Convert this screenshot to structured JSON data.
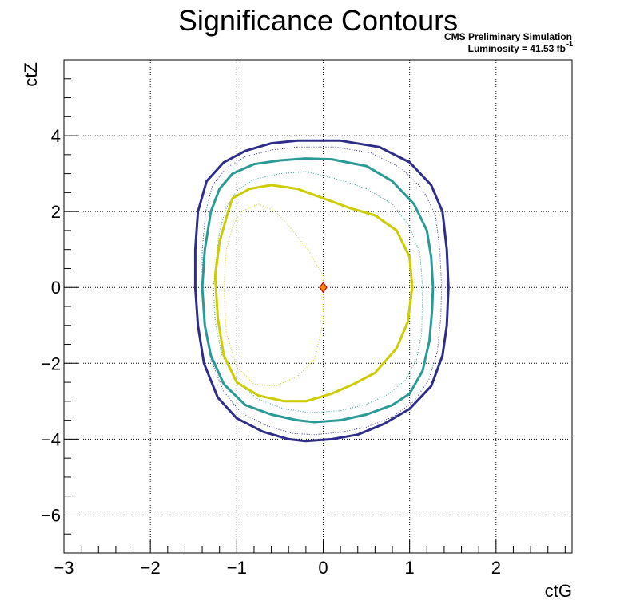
{
  "chart_data": {
    "type": "line",
    "title": "Significance Contours",
    "annotations": {
      "line1": "CMS Preliminary Simulation",
      "line2_prefix": "Luminosity = 41.53 fb",
      "line2_sup": "-1"
    },
    "xlabel": "ctG",
    "ylabel": "ctZ",
    "xlim": [
      -3,
      2.88
    ],
    "ylim": [
      -7,
      6
    ],
    "xticks": [
      -3,
      -2,
      -1,
      0,
      1,
      2
    ],
    "xtick_labels": [
      "−3",
      "−2",
      "−1",
      "0",
      "1",
      "2"
    ],
    "yticks": [
      -6,
      -4,
      -2,
      0,
      2,
      4
    ],
    "ytick_labels": [
      "−6",
      "−4",
      "−2",
      "0",
      "2",
      "4"
    ],
    "grid": true,
    "best_fit": {
      "x": 0.0,
      "y": 0.0,
      "color": "#ff8c00",
      "edge": "#c00000"
    },
    "series": [
      {
        "color": "#2e2e8a",
        "style": "solid",
        "width": 3,
        "points": [
          [
            -0.3,
            3.87
          ],
          [
            -0.6,
            3.8
          ],
          [
            -0.9,
            3.6
          ],
          [
            -1.15,
            3.3
          ],
          [
            -1.35,
            2.8
          ],
          [
            -1.45,
            2.0
          ],
          [
            -1.48,
            1.0
          ],
          [
            -1.48,
            0.0
          ],
          [
            -1.45,
            -1.0
          ],
          [
            -1.38,
            -2.0
          ],
          [
            -1.22,
            -2.9
          ],
          [
            -1.0,
            -3.45
          ],
          [
            -0.7,
            -3.8
          ],
          [
            -0.4,
            -4.0
          ],
          [
            -0.2,
            -4.05
          ],
          [
            0.1,
            -4.0
          ],
          [
            0.4,
            -3.88
          ],
          [
            0.7,
            -3.6
          ],
          [
            1.0,
            -3.2
          ],
          [
            1.25,
            -2.6
          ],
          [
            1.38,
            -1.8
          ],
          [
            1.43,
            -1.0
          ],
          [
            1.45,
            0.0
          ],
          [
            1.43,
            1.0
          ],
          [
            1.38,
            2.0
          ],
          [
            1.25,
            2.7
          ],
          [
            1.0,
            3.3
          ],
          [
            0.65,
            3.7
          ],
          [
            0.2,
            3.87
          ],
          [
            -0.3,
            3.87
          ]
        ]
      },
      {
        "color": "#2e2e8a",
        "style": "dotted",
        "width": 1,
        "points": [
          [
            -0.3,
            3.7
          ],
          [
            -0.6,
            3.62
          ],
          [
            -0.9,
            3.45
          ],
          [
            -1.12,
            3.15
          ],
          [
            -1.28,
            2.7
          ],
          [
            -1.36,
            2.0
          ],
          [
            -1.4,
            1.0
          ],
          [
            -1.4,
            0.0
          ],
          [
            -1.37,
            -1.0
          ],
          [
            -1.3,
            -1.9
          ],
          [
            -1.15,
            -2.75
          ],
          [
            -0.95,
            -3.3
          ],
          [
            -0.65,
            -3.65
          ],
          [
            -0.35,
            -3.85
          ],
          [
            -0.1,
            -3.88
          ],
          [
            0.2,
            -3.82
          ],
          [
            0.5,
            -3.68
          ],
          [
            0.8,
            -3.42
          ],
          [
            1.05,
            -3.0
          ],
          [
            1.22,
            -2.45
          ],
          [
            1.32,
            -1.7
          ],
          [
            1.36,
            -0.8
          ],
          [
            1.37,
            0.0
          ],
          [
            1.35,
            1.0
          ],
          [
            1.3,
            1.9
          ],
          [
            1.15,
            2.6
          ],
          [
            0.9,
            3.15
          ],
          [
            0.55,
            3.55
          ],
          [
            0.15,
            3.7
          ],
          [
            -0.3,
            3.7
          ]
        ]
      },
      {
        "color": "#2a9a96",
        "style": "solid",
        "width": 3,
        "points": [
          [
            -0.2,
            3.4
          ],
          [
            -0.5,
            3.35
          ],
          [
            -0.8,
            3.25
          ],
          [
            -1.05,
            3.0
          ],
          [
            -1.2,
            2.6
          ],
          [
            -1.3,
            2.0
          ],
          [
            -1.37,
            1.0
          ],
          [
            -1.4,
            0.0
          ],
          [
            -1.37,
            -1.0
          ],
          [
            -1.3,
            -1.8
          ],
          [
            -1.15,
            -2.55
          ],
          [
            -0.9,
            -3.1
          ],
          [
            -0.6,
            -3.35
          ],
          [
            -0.3,
            -3.5
          ],
          [
            -0.1,
            -3.55
          ],
          [
            0.2,
            -3.5
          ],
          [
            0.5,
            -3.35
          ],
          [
            0.8,
            -3.1
          ],
          [
            1.0,
            -2.8
          ],
          [
            1.15,
            -2.2
          ],
          [
            1.23,
            -1.4
          ],
          [
            1.26,
            -0.6
          ],
          [
            1.27,
            0.0
          ],
          [
            1.25,
            0.8
          ],
          [
            1.2,
            1.5
          ],
          [
            1.05,
            2.2
          ],
          [
            0.8,
            2.8
          ],
          [
            0.5,
            3.2
          ],
          [
            0.1,
            3.38
          ],
          [
            -0.2,
            3.4
          ]
        ]
      },
      {
        "color": "#2a9a96",
        "style": "dotted",
        "width": 1,
        "points": [
          [
            -0.2,
            3.05
          ],
          [
            -0.5,
            3.0
          ],
          [
            -0.8,
            2.85
          ],
          [
            -1.0,
            2.55
          ],
          [
            -1.12,
            2.1
          ],
          [
            -1.2,
            1.5
          ],
          [
            -1.25,
            0.5
          ],
          [
            -1.27,
            0.0
          ],
          [
            -1.25,
            -0.9
          ],
          [
            -1.17,
            -1.8
          ],
          [
            -1.0,
            -2.5
          ],
          [
            -0.75,
            -2.95
          ],
          [
            -0.45,
            -3.2
          ],
          [
            -0.15,
            -3.3
          ],
          [
            0.2,
            -3.25
          ],
          [
            0.5,
            -3.08
          ],
          [
            0.75,
            -2.82
          ],
          [
            0.95,
            -2.45
          ],
          [
            1.08,
            -1.9
          ],
          [
            1.14,
            -1.2
          ],
          [
            1.15,
            0.0
          ],
          [
            1.12,
            0.9
          ],
          [
            1.0,
            1.6
          ],
          [
            0.8,
            2.2
          ],
          [
            0.5,
            2.6
          ],
          [
            0.25,
            2.8
          ],
          [
            0.0,
            2.95
          ],
          [
            -0.2,
            3.05
          ]
        ]
      },
      {
        "color": "#cccc00",
        "style": "solid",
        "width": 3,
        "points": [
          [
            -0.6,
            2.7
          ],
          [
            -0.85,
            2.6
          ],
          [
            -1.05,
            2.35
          ],
          [
            -1.1,
            2.0
          ],
          [
            -1.2,
            1.2
          ],
          [
            -1.25,
            0.3
          ],
          [
            -1.22,
            -0.8
          ],
          [
            -1.15,
            -1.8
          ],
          [
            -1.0,
            -2.5
          ],
          [
            -0.75,
            -2.85
          ],
          [
            -0.45,
            -3.0
          ],
          [
            -0.2,
            -3.0
          ],
          [
            0.1,
            -2.8
          ],
          [
            0.35,
            -2.55
          ],
          [
            0.6,
            -2.25
          ],
          [
            0.85,
            -1.6
          ],
          [
            0.98,
            -0.9
          ],
          [
            1.03,
            0.0
          ],
          [
            1.0,
            0.8
          ],
          [
            0.85,
            1.5
          ],
          [
            0.6,
            1.9
          ],
          [
            0.3,
            2.1
          ],
          [
            0.0,
            2.35
          ],
          [
            -0.3,
            2.6
          ],
          [
            -0.6,
            2.7
          ]
        ]
      },
      {
        "color": "#cccc00",
        "style": "dotted",
        "width": 1,
        "points": [
          [
            -0.95,
            2.0
          ],
          [
            -0.75,
            2.2
          ],
          [
            -0.55,
            2.0
          ],
          [
            -0.35,
            1.5
          ],
          [
            -0.15,
            0.9
          ],
          [
            0.0,
            0.3
          ],
          [
            0.0,
            0.0
          ],
          [
            0.0,
            -0.9
          ],
          [
            -0.1,
            -1.9
          ],
          [
            -0.3,
            -2.35
          ],
          [
            -0.55,
            -2.6
          ],
          [
            -0.8,
            -2.55
          ],
          [
            -1.0,
            -2.1
          ],
          [
            -1.12,
            -1.2
          ],
          [
            -1.15,
            0.0
          ],
          [
            -1.12,
            1.0
          ],
          [
            -1.05,
            1.6
          ],
          [
            -0.95,
            2.0
          ]
        ]
      }
    ]
  }
}
